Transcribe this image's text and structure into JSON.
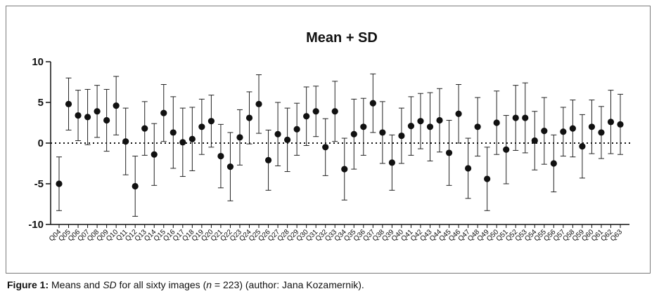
{
  "chart_data": {
    "type": "scatter",
    "title": "Mean + SD",
    "xlabel": "",
    "ylabel": "",
    "ylim": [
      -10,
      10
    ],
    "yticks": [
      10,
      5,
      0,
      -5,
      -10
    ],
    "reference_line": 0,
    "grid": false,
    "series": [
      {
        "categories": [
          "Q04",
          "Q05",
          "Q06",
          "Q07",
          "Q08",
          "Q09",
          "Q10",
          "Q11",
          "Q12",
          "Q13",
          "Q14",
          "Q15",
          "Q16",
          "Q17",
          "Q18",
          "Q19",
          "Q20",
          "Q21",
          "Q22",
          "Q23",
          "Q24",
          "Q25",
          "Q26",
          "Q27",
          "Q28",
          "Q29",
          "Q30",
          "Q31",
          "Q32",
          "Q33",
          "Q34",
          "Q35",
          "Q36",
          "Q37",
          "Q38",
          "Q39",
          "Q40",
          "Q41",
          "Q42",
          "Q43",
          "Q44",
          "Q45",
          "Q46",
          "Q47",
          "Q48",
          "Q49",
          "Q50",
          "Q51",
          "Q52",
          "Q53",
          "Q54",
          "Q55",
          "Q56",
          "Q57",
          "Q58",
          "Q59",
          "Q60",
          "Q61",
          "Q62",
          "Q63"
        ],
        "mean": [
          -5.0,
          4.8,
          3.4,
          3.2,
          3.9,
          2.8,
          4.6,
          0.2,
          -5.3,
          1.8,
          -1.4,
          3.7,
          1.3,
          0.1,
          0.5,
          2.0,
          2.7,
          -1.6,
          -2.9,
          0.7,
          3.1,
          4.8,
          -2.1,
          1.1,
          0.4,
          1.7,
          3.3,
          3.9,
          -0.5,
          3.9,
          -3.2,
          1.1,
          2.0,
          4.9,
          1.3,
          -2.4,
          0.9,
          2.1,
          2.7,
          2.0,
          2.8,
          -1.2,
          3.6,
          -3.1,
          2.0,
          -4.4,
          2.5,
          -0.8,
          3.1,
          3.1,
          0.3,
          1.5,
          -2.5,
          1.4,
          1.8,
          -0.4,
          2.0,
          1.3,
          2.6,
          2.3
        ],
        "sd": [
          3.3,
          3.2,
          3.1,
          3.4,
          3.2,
          3.8,
          3.6,
          4.1,
          3.7,
          3.3,
          3.8,
          3.5,
          4.4,
          4.2,
          3.9,
          3.4,
          3.2,
          3.9,
          4.2,
          3.4,
          3.2,
          3.6,
          3.7,
          3.9,
          3.9,
          3.2,
          3.6,
          3.1,
          3.5,
          3.7,
          3.8,
          4.3,
          3.5,
          3.6,
          3.8,
          3.4,
          3.4,
          3.6,
          3.4,
          4.2,
          3.9,
          4.0,
          3.6,
          3.7,
          3.6,
          3.9,
          3.9,
          4.2,
          4.0,
          4.3,
          3.6,
          4.1,
          3.5,
          3.0,
          3.5,
          3.9,
          3.3,
          3.2,
          3.9,
          3.7
        ]
      }
    ]
  },
  "caption": {
    "label": "Figure 1:",
    "text_before_sd": " Means and ",
    "sd": "SD",
    "text_before_n": " for all sixty images (",
    "n": "n",
    "text_after_n": " = 223) (author: Jana Kozamernik)."
  }
}
